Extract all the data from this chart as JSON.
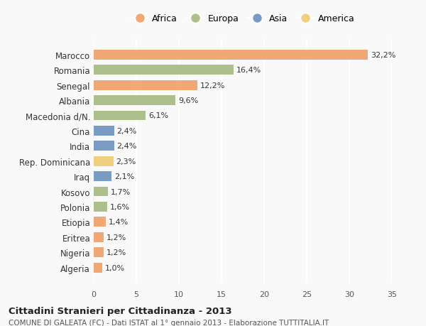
{
  "countries": [
    "Algeria",
    "Nigeria",
    "Eritrea",
    "Etiopia",
    "Polonia",
    "Kosovo",
    "Iraq",
    "Rep. Dominicana",
    "India",
    "Cina",
    "Macedonia d/N.",
    "Albania",
    "Senegal",
    "Romania",
    "Marocco"
  ],
  "values": [
    1.0,
    1.2,
    1.2,
    1.4,
    1.6,
    1.7,
    2.1,
    2.3,
    2.4,
    2.4,
    6.1,
    9.6,
    12.2,
    16.4,
    32.2
  ],
  "labels": [
    "1,0%",
    "1,2%",
    "1,2%",
    "1,4%",
    "1,6%",
    "1,7%",
    "2,1%",
    "2,3%",
    "2,4%",
    "2,4%",
    "6,1%",
    "9,6%",
    "12,2%",
    "16,4%",
    "32,2%"
  ],
  "continents": [
    "Africa",
    "Africa",
    "Africa",
    "Africa",
    "Europa",
    "Europa",
    "Asia",
    "America",
    "Asia",
    "Asia",
    "Europa",
    "Europa",
    "Africa",
    "Europa",
    "Africa"
  ],
  "colors": {
    "Africa": "#F0A875",
    "Europa": "#ADBF8A",
    "Asia": "#7A9CC4",
    "America": "#F0D080"
  },
  "legend_order": [
    "Africa",
    "Europa",
    "Asia",
    "America"
  ],
  "xlim": [
    0,
    35
  ],
  "xticks": [
    0,
    5,
    10,
    15,
    20,
    25,
    30,
    35
  ],
  "title": "Cittadini Stranieri per Cittadinanza - 2013",
  "subtitle": "COMUNE DI GALEATA (FC) - Dati ISTAT al 1° gennaio 2013 - Elaborazione TUTTITALIA.IT",
  "bg_color": "#f9f9f9",
  "grid_color": "#ffffff",
  "bar_height": 0.65
}
